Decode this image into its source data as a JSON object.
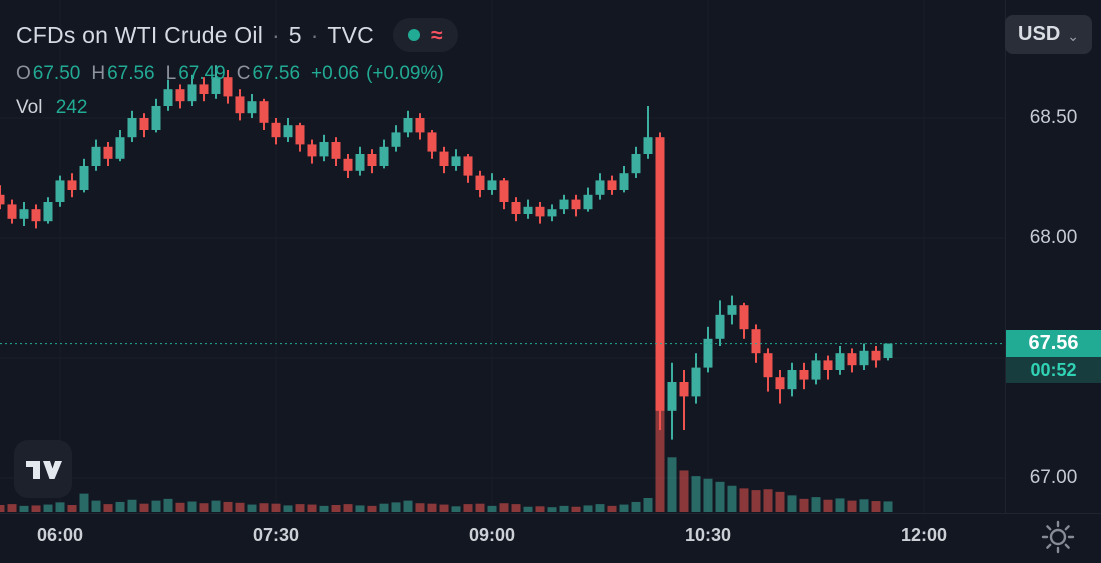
{
  "header": {
    "symbol_title": "CFDs on WTI Crude Oil",
    "separator": "·",
    "interval": "5",
    "exchange": "TVC",
    "delayed_symbol": "≈",
    "ohlc": {
      "open_label": "O",
      "open": "67.50",
      "high_label": "H",
      "high": "67.56",
      "low_label": "L",
      "low": "67.49",
      "close_label": "C",
      "close": "67.56",
      "change": "+0.06",
      "change_percent": "(+0.09%)"
    },
    "volume_label": "Vol",
    "volume_value": "242"
  },
  "currency_selector": {
    "label": "USD",
    "caret": "⌄"
  },
  "price_axis": {
    "labels": [
      {
        "text": "68.50",
        "price": 68.5
      },
      {
        "text": "68.00",
        "price": 68.0
      },
      {
        "text": "67.00",
        "price": 67.0
      }
    ],
    "last_price_badge": {
      "price": "67.56",
      "countdown": "00:52"
    }
  },
  "time_axis": {
    "labels": [
      {
        "text": "06:00"
      },
      {
        "text": "07:30"
      },
      {
        "text": "09:00"
      },
      {
        "text": "10:30"
      },
      {
        "text": "12:00"
      }
    ]
  },
  "icons": {
    "watermark": "tradingview-logo",
    "theme_toggle": "sun-icon",
    "currency_caret": "chevron-down",
    "market_status": "teal-dot",
    "delayed_data": "approx-equals"
  },
  "colors": {
    "background": "#131722",
    "candle_up": "#3cafa0",
    "candle_down": "#ef5350",
    "volume_up": "rgba(60,175,160,0.55)",
    "volume_down": "rgba(239,83,80,0.55)",
    "last_price": "#22ab94",
    "delayed_icon": "#f7525f",
    "grid_h": "#1a1f2b",
    "grid_v": "#181d27"
  },
  "chart_data": {
    "type": "candlestick",
    "symbol": "CFDs on WTI Crude Oil",
    "exchange": "TVC",
    "interval_minutes": 5,
    "start_time": "05:35",
    "last_price": 67.56,
    "price_gridlines": [
      68.5,
      68.0,
      67.5,
      67.0
    ],
    "visible_price_range": [
      66.86,
      68.99
    ],
    "candle_format": [
      "open",
      "high",
      "low",
      "close",
      "volume"
    ],
    "candles": [
      [
        68.18,
        68.22,
        68.12,
        68.14,
        160
      ],
      [
        68.14,
        68.16,
        68.06,
        68.08,
        180
      ],
      [
        68.08,
        68.15,
        68.05,
        68.12,
        140
      ],
      [
        68.12,
        68.14,
        68.04,
        68.07,
        150
      ],
      [
        68.07,
        68.17,
        68.06,
        68.15,
        170
      ],
      [
        68.15,
        68.26,
        68.13,
        68.24,
        220
      ],
      [
        68.24,
        68.27,
        68.17,
        68.2,
        160
      ],
      [
        68.2,
        68.33,
        68.19,
        68.3,
        420
      ],
      [
        68.3,
        68.41,
        68.28,
        68.38,
        260
      ],
      [
        68.38,
        68.4,
        68.3,
        68.33,
        180
      ],
      [
        68.33,
        68.45,
        68.32,
        68.42,
        230
      ],
      [
        68.42,
        68.53,
        68.4,
        68.5,
        280
      ],
      [
        68.5,
        68.52,
        68.42,
        68.45,
        190
      ],
      [
        68.45,
        68.58,
        68.44,
        68.55,
        260
      ],
      [
        68.55,
        68.66,
        68.53,
        68.62,
        300
      ],
      [
        68.62,
        68.64,
        68.54,
        68.57,
        210
      ],
      [
        68.57,
        68.68,
        68.55,
        68.64,
        240
      ],
      [
        68.64,
        68.67,
        68.57,
        68.6,
        200
      ],
      [
        68.6,
        68.72,
        68.58,
        68.67,
        260
      ],
      [
        68.67,
        68.7,
        68.56,
        68.59,
        230
      ],
      [
        68.59,
        68.62,
        68.49,
        68.52,
        210
      ],
      [
        68.52,
        68.6,
        68.5,
        68.57,
        170
      ],
      [
        68.57,
        68.58,
        68.45,
        68.48,
        200
      ],
      [
        68.48,
        68.5,
        68.39,
        68.42,
        190
      ],
      [
        68.42,
        68.5,
        68.4,
        68.47,
        150
      ],
      [
        68.47,
        68.48,
        68.36,
        68.39,
        180
      ],
      [
        68.39,
        68.41,
        68.31,
        68.34,
        170
      ],
      [
        68.34,
        68.43,
        68.32,
        68.4,
        140
      ],
      [
        68.4,
        68.42,
        68.3,
        68.33,
        160
      ],
      [
        68.33,
        68.35,
        68.25,
        68.28,
        180
      ],
      [
        68.28,
        68.38,
        68.26,
        68.35,
        150
      ],
      [
        68.35,
        68.37,
        68.27,
        68.3,
        140
      ],
      [
        68.3,
        68.41,
        68.29,
        68.38,
        190
      ],
      [
        68.38,
        68.47,
        68.36,
        68.44,
        220
      ],
      [
        68.44,
        68.53,
        68.42,
        68.5,
        260
      ],
      [
        68.5,
        68.52,
        68.41,
        68.44,
        200
      ],
      [
        68.44,
        68.45,
        68.33,
        68.36,
        190
      ],
      [
        68.36,
        68.38,
        68.27,
        68.3,
        170
      ],
      [
        68.3,
        68.37,
        68.28,
        68.34,
        130
      ],
      [
        68.34,
        68.35,
        68.23,
        68.26,
        180
      ],
      [
        68.26,
        68.28,
        68.17,
        68.2,
        190
      ],
      [
        68.2,
        68.27,
        68.18,
        68.24,
        140
      ],
      [
        68.24,
        68.25,
        68.12,
        68.15,
        200
      ],
      [
        68.15,
        68.17,
        68.07,
        68.1,
        180
      ],
      [
        68.1,
        68.16,
        68.08,
        68.13,
        120
      ],
      [
        68.13,
        68.15,
        68.06,
        68.09,
        130
      ],
      [
        68.09,
        68.14,
        68.07,
        68.12,
        110
      ],
      [
        68.12,
        68.18,
        68.1,
        68.16,
        140
      ],
      [
        68.16,
        68.18,
        68.09,
        68.12,
        120
      ],
      [
        68.12,
        68.21,
        68.11,
        68.18,
        150
      ],
      [
        68.18,
        68.27,
        68.16,
        68.24,
        180
      ],
      [
        68.24,
        68.26,
        68.18,
        68.2,
        140
      ],
      [
        68.2,
        68.3,
        68.19,
        68.27,
        170
      ],
      [
        68.27,
        68.38,
        68.25,
        68.35,
        230
      ],
      [
        68.35,
        68.55,
        68.33,
        68.42,
        320
      ],
      [
        68.42,
        68.44,
        67.2,
        67.28,
        2400
      ],
      [
        67.28,
        67.48,
        67.16,
        67.4,
        1250
      ],
      [
        67.4,
        67.45,
        67.2,
        67.34,
        950
      ],
      [
        67.34,
        67.52,
        67.31,
        67.46,
        820
      ],
      [
        67.46,
        67.63,
        67.44,
        67.58,
        760
      ],
      [
        67.58,
        67.74,
        67.55,
        67.68,
        690
      ],
      [
        67.68,
        67.76,
        67.64,
        67.72,
        600
      ],
      [
        67.72,
        67.73,
        67.58,
        67.62,
        540
      ],
      [
        67.62,
        67.64,
        67.48,
        67.52,
        500
      ],
      [
        67.52,
        67.54,
        67.36,
        67.42,
        520
      ],
      [
        67.42,
        67.45,
        67.31,
        67.37,
        460
      ],
      [
        67.37,
        67.48,
        67.34,
        67.45,
        380
      ],
      [
        67.45,
        67.48,
        67.37,
        67.41,
        300
      ],
      [
        67.41,
        67.52,
        67.39,
        67.49,
        340
      ],
      [
        67.49,
        67.51,
        67.41,
        67.45,
        280
      ],
      [
        67.45,
        67.55,
        67.43,
        67.52,
        310
      ],
      [
        67.52,
        67.54,
        67.44,
        67.47,
        260
      ],
      [
        67.47,
        67.56,
        67.45,
        67.53,
        290
      ],
      [
        67.53,
        67.55,
        67.46,
        67.49,
        250
      ],
      [
        67.5,
        67.56,
        67.49,
        67.56,
        242
      ]
    ]
  }
}
